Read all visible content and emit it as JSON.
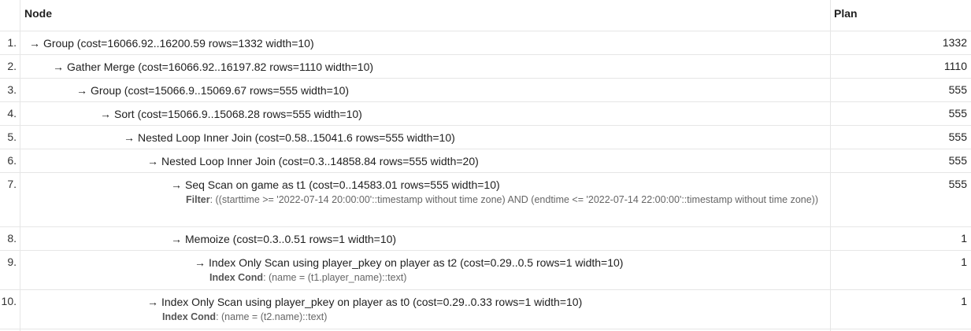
{
  "columns": {
    "node": "Node",
    "plan": "Plan"
  },
  "rows": [
    {
      "num": "1.",
      "text": "Group (cost=16066.92..16200.59 rows=1332 width=10)",
      "plan": "1332"
    },
    {
      "num": "2.",
      "text": "Gather Merge (cost=16066.92..16197.82 rows=1110 width=10)",
      "plan": "1110"
    },
    {
      "num": "3.",
      "text": "Group (cost=15066.9..15069.67 rows=555 width=10)",
      "plan": "555"
    },
    {
      "num": "4.",
      "text": "Sort (cost=15066.9..15068.28 rows=555 width=10)",
      "plan": "555"
    },
    {
      "num": "5.",
      "text": "Nested Loop Inner Join (cost=0.58..15041.6 rows=555 width=10)",
      "plan": "555"
    },
    {
      "num": "6.",
      "text": "Nested Loop Inner Join (cost=0.3..14858.84 rows=555 width=20)",
      "plan": "555"
    },
    {
      "num": "7.",
      "text": "Seq Scan on game as t1 (cost=0..14583.01 rows=555 width=10)",
      "plan": "555",
      "detail_label": "Filter",
      "detail_text": "((starttime >= '2022-07-14 20:00:00'::timestamp without time zone) AND (endtime <= '2022-07-14 22:00:00'::timestamp without time zone))"
    },
    {
      "num": "8.",
      "text": "Memoize (cost=0.3..0.51 rows=1 width=10)",
      "plan": "1"
    },
    {
      "num": "9.",
      "text": "Index Only Scan using player_pkey on player as t2 (cost=0.29..0.5 rows=1 width=10)",
      "plan": "1",
      "detail_label": "Index Cond",
      "detail_text": "(name = (t1.player_name)::text)"
    },
    {
      "num": "10.",
      "text": "Index Only Scan using player_pkey on player as t0 (cost=0.29..0.33 rows=1 width=10)",
      "plan": "1",
      "detail_label": "Index Cond",
      "detail_text": "(name = (t2.name)::text)"
    }
  ]
}
